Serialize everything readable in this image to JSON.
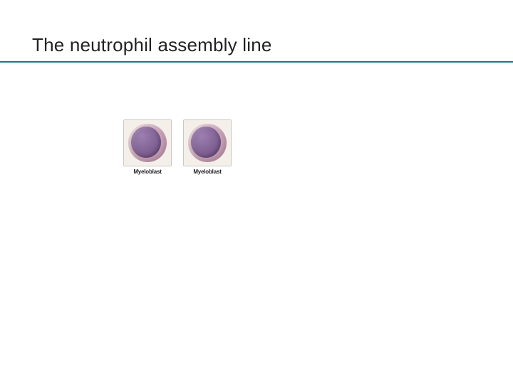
{
  "title": "The neutrophil assembly line",
  "rule_color": "#0f7e88",
  "cells": [
    {
      "label": "Myeloblast",
      "cytoplasm_color": "#d9b8c8",
      "cytoplasm_edge": "#b98fa6",
      "nucleus_color": "#7a5a8c",
      "nucleus_highlight": "#9c7fb0"
    },
    {
      "label": "Myeloblast",
      "cytoplasm_color": "#d9b8c8",
      "cytoplasm_edge": "#b98fa6",
      "nucleus_color": "#7a5a8c",
      "nucleus_highlight": "#9c7fb0"
    }
  ]
}
